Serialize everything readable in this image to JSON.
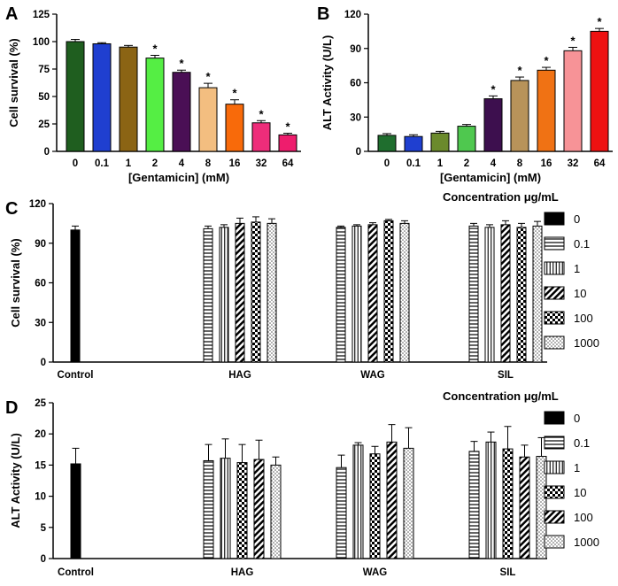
{
  "chart_data": [
    {
      "panel": "A",
      "type": "bar",
      "xlabel": "[Gentamicin] (mM)",
      "ylabel": "Cell survival (%)",
      "ylim": [
        0,
        125
      ],
      "yticks": [
        0,
        25,
        50,
        75,
        100,
        125
      ],
      "categories": [
        "0",
        "0.1",
        "1",
        "2",
        "4",
        "8",
        "16",
        "32",
        "64"
      ],
      "values": [
        100,
        98,
        95,
        85,
        72,
        58,
        43,
        26,
        15
      ],
      "errors": [
        2,
        1,
        1.5,
        2.5,
        2,
        4,
        4,
        2,
        1.5
      ],
      "significant": [
        false,
        false,
        false,
        true,
        true,
        true,
        true,
        true,
        true
      ],
      "significance_mark": "*",
      "colors": [
        "#1f5e1f",
        "#1f3fd0",
        "#8b6414",
        "#55ee44",
        "#4a0f55",
        "#f3be80",
        "#f86a0a",
        "#ee2d7a",
        "#ee1d6d"
      ]
    },
    {
      "panel": "B",
      "type": "bar",
      "xlabel": "[Gentamicin] (mM)",
      "ylabel": "ALT Activity (U/L)",
      "ylim": [
        0,
        120
      ],
      "yticks": [
        0,
        30,
        60,
        90,
        120
      ],
      "categories": [
        "0",
        "0.1",
        "1",
        "2",
        "4",
        "8",
        "16",
        "32",
        "64"
      ],
      "values": [
        14,
        13,
        16,
        22,
        46,
        62,
        71,
        88,
        105
      ],
      "errors": [
        1.5,
        1.5,
        1.5,
        1.5,
        2.5,
        3,
        2.5,
        3,
        2.5
      ],
      "significant": [
        false,
        false,
        false,
        false,
        true,
        true,
        true,
        true,
        true
      ],
      "significance_mark": "*",
      "colors": [
        "#1f6e2e",
        "#1f3fd0",
        "#6b8a2c",
        "#4fc84f",
        "#3d0f4e",
        "#b8935a",
        "#f07214",
        "#f79397",
        "#ee1111"
      ]
    },
    {
      "panel": "C",
      "type": "bar",
      "ylabel": "Cell survival (%)",
      "ylim": [
        0,
        120
      ],
      "yticks": [
        0,
        30,
        60,
        90,
        120
      ],
      "categories": [
        "Control",
        "HAG",
        "WAG",
        "SIL"
      ],
      "legend_title": "Concentration μg/mL",
      "legend_position": "right",
      "series": [
        {
          "name": "0",
          "pattern": "solid",
          "values": [
            100,
            null,
            null,
            null
          ],
          "errors": [
            3,
            null,
            null,
            null
          ]
        },
        {
          "name": "0.1",
          "pattern": "hlines",
          "values": [
            null,
            101,
            102,
            103
          ],
          "errors": [
            null,
            2,
            1,
            2
          ]
        },
        {
          "name": "1",
          "pattern": "vlines",
          "values": [
            null,
            102,
            103,
            102
          ],
          "errors": [
            null,
            2,
            1,
            2
          ]
        },
        {
          "name": "10",
          "pattern": "diag",
          "values": [
            null,
            105,
            104,
            104
          ],
          "errors": [
            null,
            4,
            1.5,
            3
          ]
        },
        {
          "name": "100",
          "pattern": "checker",
          "values": [
            null,
            106,
            107,
            102
          ],
          "errors": [
            null,
            4,
            1,
            3
          ]
        },
        {
          "name": "1000",
          "pattern": "dots",
          "values": [
            null,
            105,
            105,
            103
          ],
          "errors": [
            null,
            3.5,
            2,
            3.5
          ]
        }
      ]
    },
    {
      "panel": "D",
      "type": "bar",
      "ylabel": "ALT Activity (U/L)",
      "ylim": [
        0,
        25
      ],
      "yticks": [
        0,
        5,
        10,
        15,
        20,
        25
      ],
      "categories": [
        "Control",
        "HAG",
        "WAG",
        "SIL"
      ],
      "legend_title": "Concentration μg/mL",
      "legend_position": "right",
      "series": [
        {
          "name": "0",
          "pattern": "solid",
          "values": [
            15.2,
            null,
            null,
            null
          ],
          "errors": [
            2.5,
            null,
            null,
            null
          ]
        },
        {
          "name": "0.1",
          "pattern": "hlines",
          "values": [
            null,
            15.7,
            14.6,
            17.2
          ],
          "errors": [
            null,
            2.6,
            2,
            1.6
          ]
        },
        {
          "name": "1",
          "pattern": "vlines",
          "values": [
            null,
            16.1,
            18.2,
            18.7
          ],
          "errors": [
            null,
            3.1,
            0.4,
            1.6
          ]
        },
        {
          "name": "10",
          "pattern": "checker",
          "values": [
            null,
            15.4,
            16.8,
            17.6
          ],
          "errors": [
            null,
            2.9,
            1.2,
            3.6
          ]
        },
        {
          "name": "100",
          "pattern": "diag",
          "values": [
            null,
            15.9,
            18.7,
            16.3
          ],
          "errors": [
            null,
            3.1,
            2.8,
            1.9
          ]
        },
        {
          "name": "1000",
          "pattern": "dots",
          "values": [
            null,
            15,
            17.7,
            16.4
          ],
          "errors": [
            null,
            1.3,
            3.3,
            3
          ]
        }
      ]
    }
  ]
}
